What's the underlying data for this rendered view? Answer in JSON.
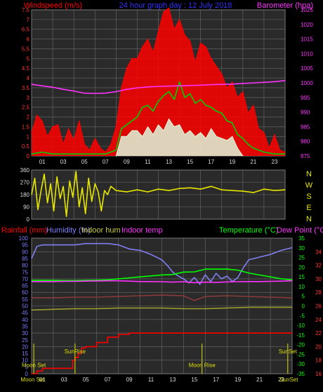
{
  "colors": {
    "background": "#000000",
    "plot_bg": "#2a2a2a",
    "grid": "#6a6a6a",
    "wind": "#ff0000",
    "gust_avg": "#00d200",
    "wind_min": "#dff7da",
    "baro": "#ff33ff",
    "winddir": "#e6e600",
    "humidity_out": "#7f7ff0",
    "humidity_in": "#9a9a30",
    "temp_in": "#8a3a3a",
    "temperature": "#00ff00",
    "dewpoint": "#ff33ff",
    "rain": "#ff0000",
    "sun_moon": "#dddd00"
  },
  "header": {
    "left": "Windspeed (m/s)",
    "center": "24 hour graph day : 12 July 2018",
    "right": "Barometer (hpa)"
  },
  "legend_bottom": {
    "rainfall": "Rainfall (mm)",
    "humidity": "Humidity (%)",
    "indoor_hum": "Indoor hum",
    "indoor_temp": "Indoor temp",
    "temperature": "Temperature (°C)",
    "dew_point": "Dew Point (°C)"
  },
  "compass": [
    "N",
    "W",
    "S",
    "E",
    "N"
  ],
  "annotations": {
    "moon_set": "Moon Set",
    "sun_rise": "SunRise",
    "moon_rise": "Moon Rise",
    "sun_set": "SunSet"
  },
  "chart_data": [
    {
      "type": "line",
      "name": "wind-baro",
      "x_ticks": [
        "01",
        "03",
        "05",
        "07",
        "09",
        "11",
        "13",
        "15",
        "17",
        "19",
        "21",
        "23"
      ],
      "xlim": [
        0,
        24
      ],
      "ylim_left": [
        0,
        7.5
      ],
      "left_ticks": [
        "0",
        "0.5",
        "1",
        "1.5",
        "2",
        "2.5",
        "3",
        "3.5",
        "4",
        "4.5",
        "5",
        "5.5",
        "6",
        "6.5",
        "7",
        "7.5"
      ],
      "ylim_right": [
        975,
        1025
      ],
      "right_ticks": [
        "975",
        "980",
        "985",
        "990",
        "995",
        "1000",
        "1005",
        "1010",
        "1015",
        "1020",
        "1025"
      ],
      "series": [
        {
          "key": "wind_gust",
          "color_key": "wind",
          "fill": true,
          "x": [
            0,
            0.5,
            1,
            1.5,
            2,
            2.5,
            3,
            3.5,
            4,
            4.5,
            5,
            5.5,
            6,
            6.5,
            7,
            7.5,
            8,
            8.5,
            9,
            9.5,
            10,
            10.5,
            11,
            11.5,
            12,
            12.5,
            13,
            13.5,
            14,
            14.5,
            15,
            15.5,
            16,
            16.5,
            17,
            17.5,
            18,
            18.5,
            19,
            19.5,
            20,
            20.5,
            21,
            21.5,
            22,
            22.5,
            23,
            23.5,
            24
          ],
          "y": [
            1.2,
            2.1,
            1.8,
            1.0,
            1.5,
            1.6,
            0.6,
            1.4,
            0.8,
            1.8,
            0.6,
            0.3,
            0.9,
            0.4,
            0.2,
            0.6,
            1.5,
            3.5,
            4.5,
            5.0,
            5.0,
            5.6,
            6.0,
            5.3,
            6.4,
            7.4,
            7.6,
            6.5,
            7.0,
            6.2,
            5.9,
            4.8,
            5.8,
            5.6,
            5.0,
            4.6,
            4.2,
            3.5,
            3.8,
            3.0,
            3.3,
            2.2,
            2.6,
            1.4,
            1.2,
            0.4,
            1.1,
            0.3,
            0.2
          ]
        },
        {
          "key": "wind_avg",
          "color_key": "gust_avg",
          "x": [
            0,
            1,
            2,
            3,
            4,
            5,
            6,
            7,
            8,
            8.5,
            9,
            9.5,
            10,
            10.5,
            11,
            11.5,
            12,
            12.5,
            13,
            13.5,
            14,
            14.5,
            15,
            15.5,
            16,
            16.5,
            17,
            17.5,
            18,
            18.5,
            19,
            19.5,
            20,
            20.5,
            21,
            22,
            23,
            24
          ],
          "y": [
            0.1,
            0.2,
            0.1,
            0.1,
            0.1,
            0.1,
            0.1,
            0.1,
            0.3,
            1.4,
            1.6,
            1.8,
            2.0,
            2.5,
            2.6,
            2.3,
            2.8,
            3.1,
            3.3,
            2.9,
            3.8,
            3.0,
            3.2,
            2.7,
            2.9,
            2.6,
            2.5,
            2.3,
            2.2,
            1.8,
            1.7,
            1.1,
            0.9,
            0.6,
            0.4,
            0.2,
            0.1,
            0.1
          ]
        },
        {
          "key": "wind_min",
          "color_key": "wind_min",
          "fill": true,
          "x": [
            8,
            8.5,
            9,
            9.5,
            10,
            10.5,
            11,
            11.5,
            12,
            12.5,
            13,
            13.5,
            14,
            14.5,
            15,
            15.5,
            16,
            16.5,
            17,
            17.5,
            18,
            18.5,
            19,
            19.5,
            20
          ],
          "y": [
            0.0,
            1.0,
            1.0,
            1.3,
            1.3,
            1.0,
            1.5,
            1.1,
            1.6,
            1.3,
            1.9,
            1.5,
            1.6,
            1.1,
            1.3,
            1.0,
            1.2,
            0.9,
            1.4,
            1.0,
            0.9,
            0.8,
            1.0,
            0.4,
            0.0
          ]
        },
        {
          "key": "barometer",
          "color_key": "baro",
          "axis": "right",
          "x": [
            0,
            1,
            2,
            3,
            4,
            5,
            6,
            7,
            8,
            9,
            10,
            11,
            12,
            13,
            14,
            15,
            16,
            17,
            18,
            19,
            20,
            21,
            22,
            23,
            24
          ],
          "y": [
            999.5,
            999.0,
            998.5,
            997.8,
            997.2,
            996.5,
            996.4,
            996.5,
            997.0,
            997.8,
            998.3,
            998.6,
            998.8,
            998.9,
            999.0,
            999.1,
            999.2,
            999.4,
            999.5,
            999.6,
            999.8,
            1000.0,
            1000.2,
            1000.4,
            1000.8
          ]
        }
      ]
    },
    {
      "type": "line",
      "name": "wind-direction",
      "xlim": [
        0,
        24
      ],
      "ylim": [
        0,
        360
      ],
      "y_ticks": [
        "0",
        "90",
        "180",
        "270",
        "360"
      ],
      "series": [
        {
          "key": "direction",
          "color_key": "winddir",
          "x": [
            0,
            0.3,
            0.6,
            0.9,
            1.2,
            1.5,
            1.8,
            2.1,
            2.4,
            2.7,
            3.0,
            3.3,
            3.6,
            3.9,
            4.2,
            4.5,
            4.8,
            5.1,
            5.4,
            5.7,
            6.0,
            6.3,
            6.6,
            6.9,
            7.2,
            7.5,
            8,
            9,
            10,
            11,
            12,
            13,
            14,
            15,
            16,
            17,
            18,
            19,
            20,
            21,
            22,
            23,
            24
          ],
          "y": [
            180,
            300,
            70,
            210,
            330,
            120,
            260,
            60,
            310,
            150,
            240,
            20,
            280,
            160,
            350,
            90,
            230,
            40,
            300,
            130,
            260,
            200,
            60,
            210,
            180,
            240,
            210,
            200,
            215,
            200,
            220,
            210,
            225,
            230,
            220,
            240,
            215,
            210,
            205,
            195,
            220,
            210,
            215
          ]
        }
      ]
    },
    {
      "type": "line",
      "name": "temp-hum-rain",
      "x_ticks": [
        "01",
        "03",
        "05",
        "07",
        "09",
        "11",
        "13",
        "15",
        "17",
        "19",
        "21",
        "23"
      ],
      "xlim": [
        0,
        24
      ],
      "ylim_left": [
        0,
        100
      ],
      "left_ticks": [
        "0",
        "5",
        "10",
        "15",
        "20",
        "25",
        "30",
        "35",
        "40",
        "45",
        "50",
        "55",
        "60",
        "65",
        "70",
        "75",
        "80",
        "85",
        "90",
        "95",
        "100"
      ],
      "ylim_right": [
        -35,
        35
      ],
      "right_ticks": [
        "-35",
        "-30",
        "-25",
        "-20",
        "-15",
        "-10",
        "-5",
        "0",
        "5",
        "10",
        "15",
        "20",
        "25",
        "30",
        "35"
      ],
      "ylim_right2": [
        16,
        36
      ],
      "right2_ticks": [
        "16",
        "18",
        "20",
        "22",
        "24",
        "26",
        "28",
        "30",
        "32",
        "34"
      ],
      "series": [
        {
          "key": "humidity",
          "color_key": "humidity_out",
          "axis": "left",
          "x": [
            0,
            0.5,
            1,
            2,
            3,
            4,
            5,
            6,
            7,
            8,
            9,
            10,
            11,
            12,
            12.5,
            13,
            13.5,
            14,
            14.5,
            15,
            15.5,
            16,
            16.5,
            17,
            17.5,
            18,
            18.5,
            19,
            19.5,
            20,
            21,
            22,
            23,
            24
          ],
          "y": [
            85,
            94,
            95,
            95,
            95,
            95,
            96,
            96,
            96,
            95,
            92,
            91,
            88,
            84,
            80,
            75,
            72,
            70,
            67,
            71,
            66,
            73,
            68,
            74,
            70,
            72,
            68,
            71,
            78,
            84,
            86,
            88,
            91,
            93
          ]
        },
        {
          "key": "indoor_hum",
          "color_key": "humidity_in",
          "axis": "left",
          "x": [
            0,
            2,
            4,
            6,
            8,
            10,
            12,
            14,
            16,
            18,
            20,
            22,
            24
          ],
          "y": [
            47,
            47.5,
            48,
            48,
            48.5,
            48.5,
            48.5,
            48,
            48,
            48.5,
            49,
            49,
            49
          ]
        },
        {
          "key": "indoor_temp",
          "color_key": "temp_in",
          "axis": "right2",
          "x": [
            0,
            2,
            4,
            6,
            8,
            10,
            12,
            14,
            15,
            16,
            18,
            20,
            22,
            24
          ],
          "y": [
            27.2,
            27.2,
            27.3,
            27.3,
            27.4,
            27.5,
            27.6,
            27.5,
            26.8,
            27.4,
            27.5,
            27.4,
            27.3,
            27.2
          ]
        },
        {
          "key": "temperature",
          "color_key": "temperature",
          "axis": "right",
          "x": [
            0,
            1,
            2,
            3,
            4,
            5,
            6,
            7,
            8,
            9,
            10,
            11,
            12,
            13,
            14,
            15,
            16,
            17,
            18,
            19,
            20,
            21,
            22,
            23,
            24
          ],
          "y": [
            13.2,
            13.2,
            13.2,
            13.1,
            13.1,
            13.2,
            13.3,
            13.5,
            14.0,
            14.5,
            15.0,
            15.5,
            16.0,
            16.2,
            17.5,
            17.6,
            19.0,
            19.0,
            19.0,
            18.5,
            17.0,
            16.0,
            15.0,
            14.0,
            13.5
          ]
        },
        {
          "key": "dewpoint",
          "color_key": "dewpoint",
          "axis": "right",
          "x": [
            0,
            1,
            2,
            3,
            4,
            5,
            6,
            7,
            8,
            9,
            10,
            11,
            12,
            13,
            14,
            15,
            16,
            17,
            18,
            19,
            20,
            21,
            22,
            23,
            24
          ],
          "y": [
            12.6,
            12.6,
            12.6,
            12.7,
            12.7,
            12.8,
            12.9,
            13.0,
            13.0,
            12.8,
            12.6,
            12.6,
            12.5,
            12.3,
            12.5,
            12.0,
            12.3,
            12.2,
            12.4,
            12.5,
            12.6,
            12.6,
            12.7,
            12.8,
            13.0
          ]
        },
        {
          "key": "rain",
          "color_key": "rain",
          "axis": "left",
          "step": true,
          "x": [
            0,
            0.5,
            1,
            1.5,
            2,
            3.5,
            3.8,
            4.0,
            4.3,
            4.6,
            5.0,
            6.0,
            7.0,
            8.0,
            9.0,
            24.0
          ],
          "y": [
            0,
            2,
            4,
            4,
            4,
            4,
            10,
            12,
            15,
            19,
            20,
            23,
            27,
            29,
            30,
            30
          ]
        }
      ],
      "markers": [
        {
          "x": 0.2,
          "label_key": "moon_set",
          "label_y": 5
        },
        {
          "x": 4.0,
          "label_key": "sun_rise",
          "label_y": 15
        },
        {
          "x": 23.6,
          "label_key": "sun_set",
          "label_y": 15
        },
        {
          "x": 15.7,
          "label_key": "moon_rise",
          "label_y": 5
        }
      ],
      "x_tick_extra": [
        {
          "x": 0.1,
          "text": "Moon Set"
        },
        {
          "x": 23.7,
          "text": "SunSet"
        }
      ]
    }
  ]
}
